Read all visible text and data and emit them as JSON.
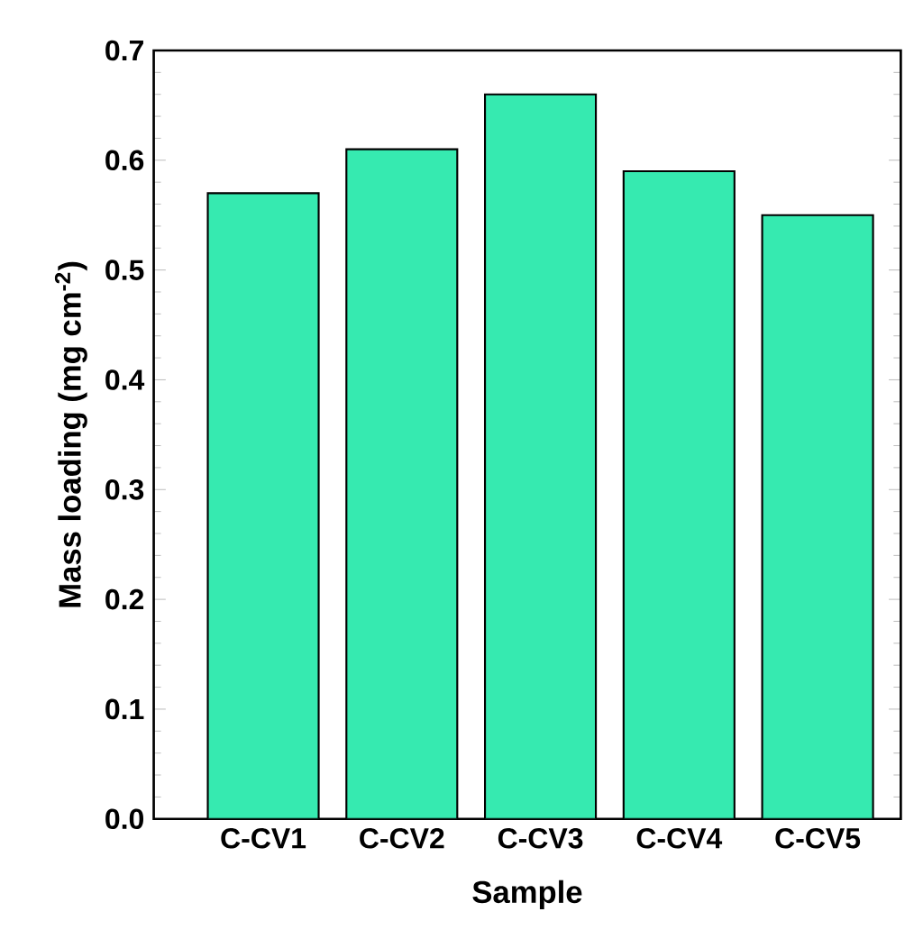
{
  "chart_data": {
    "type": "bar",
    "xlabel": "Sample",
    "ylabel": "Mass loading (mg cm$^{-2}$)",
    "categories": [
      "C-CV1",
      "C-CV2",
      "C-CV3",
      "C-CV4",
      "C-CV5"
    ],
    "values": [
      0.57,
      0.61,
      0.66,
      0.59,
      0.55
    ],
    "color": "#36eab0",
    "ylim": [
      0,
      0.7
    ],
    "yticks": [
      {
        "value": 0,
        "label": "0.0"
      },
      0.1,
      0.2,
      0.3,
      0.4,
      0.5,
      0.6,
      0.7
    ],
    "grid": false
  }
}
